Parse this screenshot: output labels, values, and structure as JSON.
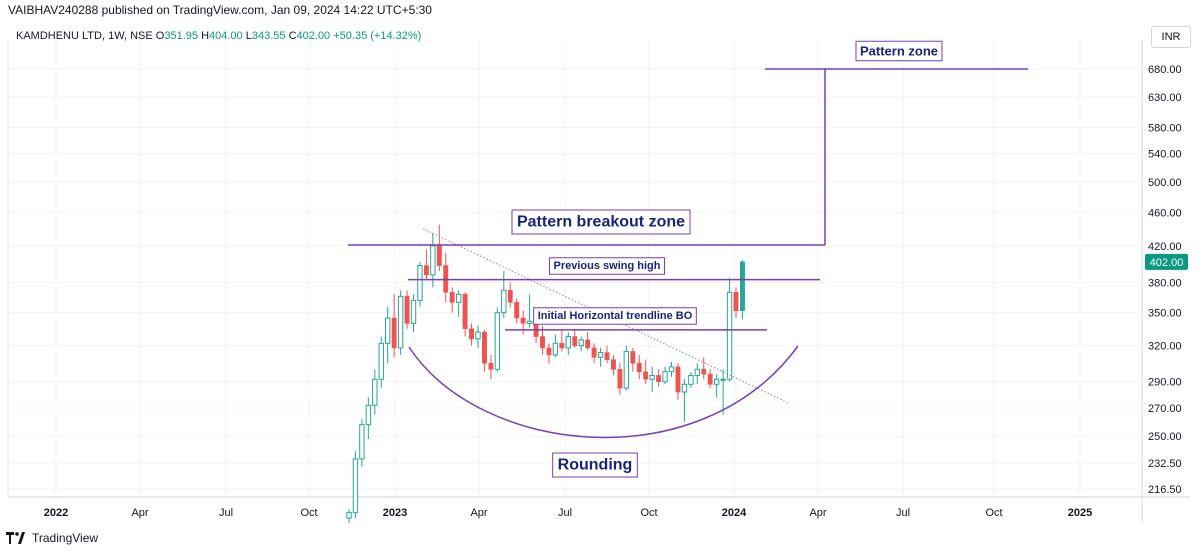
{
  "credit": "VAIBHAV240288 published on TradingView.com, Jan 09, 2024 14:22 UTC+5:30",
  "legend": {
    "symbol": "KAMDHENU LTD, 1W, NSE",
    "o_label": "O",
    "o": "351.95",
    "h_label": "H",
    "h": "404.00",
    "l_label": "L",
    "l": "343.55",
    "c_label": "C",
    "c": "402.00",
    "change": "+50.35 (+14.32%)"
  },
  "currency": "INR",
  "footer": {
    "brand": "TradingView"
  },
  "colors": {
    "up": "#26a69a",
    "down": "#ef5350",
    "annotation": "#7b3fb0",
    "label_text": "#1a237e",
    "price_tag": "#089981"
  },
  "chart_data": {
    "type": "candlestick",
    "symbol": "KAMDHENU LTD",
    "interval": "1W",
    "exchange": "NSE",
    "y_axis": {
      "scale": "log",
      "ticks": [
        "216.50",
        "232.50",
        "250.00",
        "270.00",
        "290.00",
        "320.00",
        "350.00",
        "380.00",
        "420.00",
        "460.00",
        "500.00",
        "540.00",
        "580.00",
        "630.00",
        "680.00"
      ],
      "current_price": "402.00"
    },
    "x_axis": {
      "ticks": [
        "2022",
        "Apr",
        "Jul",
        "Oct",
        "2023",
        "Apr",
        "Jul",
        "Oct",
        "2024",
        "Apr",
        "Jul",
        "Oct",
        "2025"
      ]
    },
    "candles": [
      [
        0,
        200,
        205,
        195,
        203
      ],
      [
        1,
        203,
        240,
        200,
        235
      ],
      [
        2,
        235,
        262,
        230,
        258
      ],
      [
        3,
        258,
        278,
        248,
        272
      ],
      [
        4,
        272,
        300,
        265,
        292
      ],
      [
        5,
        292,
        328,
        285,
        322
      ],
      [
        6,
        322,
        356,
        305,
        345
      ],
      [
        7,
        345,
        368,
        310,
        318
      ],
      [
        8,
        318,
        372,
        312,
        366
      ],
      [
        9,
        366,
        372,
        335,
        340
      ],
      [
        10,
        340,
        368,
        332,
        362
      ],
      [
        11,
        362,
        402,
        356,
        398
      ],
      [
        12,
        398,
        416,
        382,
        388
      ],
      [
        13,
        388,
        435,
        375,
        420
      ],
      [
        14,
        420,
        445,
        392,
        398
      ],
      [
        15,
        398,
        412,
        360,
        370
      ],
      [
        16,
        370,
        375,
        350,
        360
      ],
      [
        17,
        360,
        372,
        346,
        368
      ],
      [
        18,
        368,
        370,
        328,
        335
      ],
      [
        19,
        335,
        340,
        320,
        326
      ],
      [
        20,
        326,
        338,
        318,
        332
      ],
      [
        21,
        332,
        334,
        298,
        305
      ],
      [
        22,
        305,
        312,
        292,
        300
      ],
      [
        23,
        300,
        355,
        298,
        350
      ],
      [
        24,
        350,
        392,
        345,
        372
      ],
      [
        25,
        372,
        380,
        355,
        360
      ],
      [
        26,
        360,
        364,
        340,
        345
      ],
      [
        27,
        345,
        352,
        330,
        340
      ],
      [
        28,
        340,
        368,
        336,
        342
      ],
      [
        29,
        342,
        345,
        322,
        328
      ],
      [
        30,
        328,
        338,
        312,
        318
      ],
      [
        31,
        318,
        322,
        305,
        312
      ],
      [
        32,
        312,
        330,
        310,
        322
      ],
      [
        33,
        322,
        335,
        315,
        318
      ],
      [
        34,
        318,
        332,
        312,
        328
      ],
      [
        35,
        328,
        335,
        318,
        320
      ],
      [
        36,
        320,
        328,
        315,
        325
      ],
      [
        37,
        325,
        332,
        316,
        318
      ],
      [
        38,
        318,
        322,
        305,
        310
      ],
      [
        39,
        310,
        318,
        302,
        314
      ],
      [
        40,
        314,
        320,
        305,
        308
      ],
      [
        41,
        308,
        312,
        295,
        300
      ],
      [
        42,
        300,
        305,
        280,
        285
      ],
      [
        43,
        285,
        320,
        283,
        315
      ],
      [
        44,
        315,
        318,
        298,
        305
      ],
      [
        45,
        305,
        312,
        292,
        298
      ],
      [
        46,
        298,
        308,
        288,
        292
      ],
      [
        47,
        292,
        302,
        282,
        295
      ],
      [
        48,
        295,
        300,
        286,
        290
      ],
      [
        49,
        290,
        302,
        288,
        298
      ],
      [
        50,
        298,
        306,
        294,
        302
      ],
      [
        51,
        302,
        305,
        276,
        282
      ],
      [
        52,
        282,
        292,
        260,
        288
      ],
      [
        53,
        288,
        298,
        285,
        295
      ],
      [
        54,
        295,
        305,
        288,
        300
      ],
      [
        55,
        300,
        310,
        292,
        296
      ],
      [
        56,
        296,
        300,
        285,
        288
      ],
      [
        57,
        288,
        296,
        278,
        292
      ],
      [
        58,
        292,
        300,
        265,
        292
      ],
      [
        59,
        292,
        385,
        290,
        370
      ],
      [
        60,
        370,
        375,
        345,
        351.95
      ],
      [
        61,
        351.95,
        404,
        343.55,
        402
      ]
    ],
    "trendline": {
      "from": [
        11.5,
        440
      ],
      "to": [
        68,
        274
      ]
    },
    "annotations": [
      {
        "text": "Pattern zone",
        "kind": "target_level",
        "price": 680
      },
      {
        "text": "Pattern breakout zone",
        "kind": "resistance",
        "price": 421
      },
      {
        "text": "Previous swing high",
        "kind": "resistance",
        "price": 383
      },
      {
        "text": "Initial Horizontal trendline BO",
        "kind": "resistance",
        "price": 334
      },
      {
        "text": "Rounding",
        "kind": "pattern_arc"
      }
    ]
  }
}
